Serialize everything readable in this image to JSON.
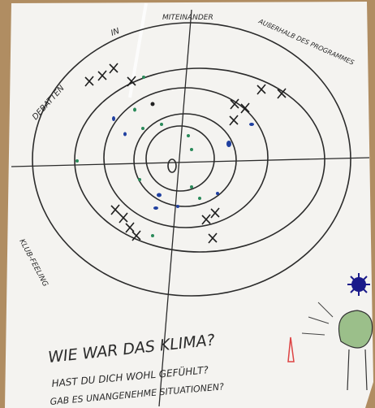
{
  "labels": {
    "in": "IN",
    "together": "MITEINANDER",
    "outside": "AUßERHALB DES PROGRAMMES",
    "debates": "DEBATTEN",
    "club": "KLUB-FEELING"
  },
  "questions": [
    "WIE WAR DAS KLIMA?",
    "HAST DU DICH WOHL GEFÜHLT?",
    "GAB ES UNANGENEHME SITUATIONEN?"
  ]
}
